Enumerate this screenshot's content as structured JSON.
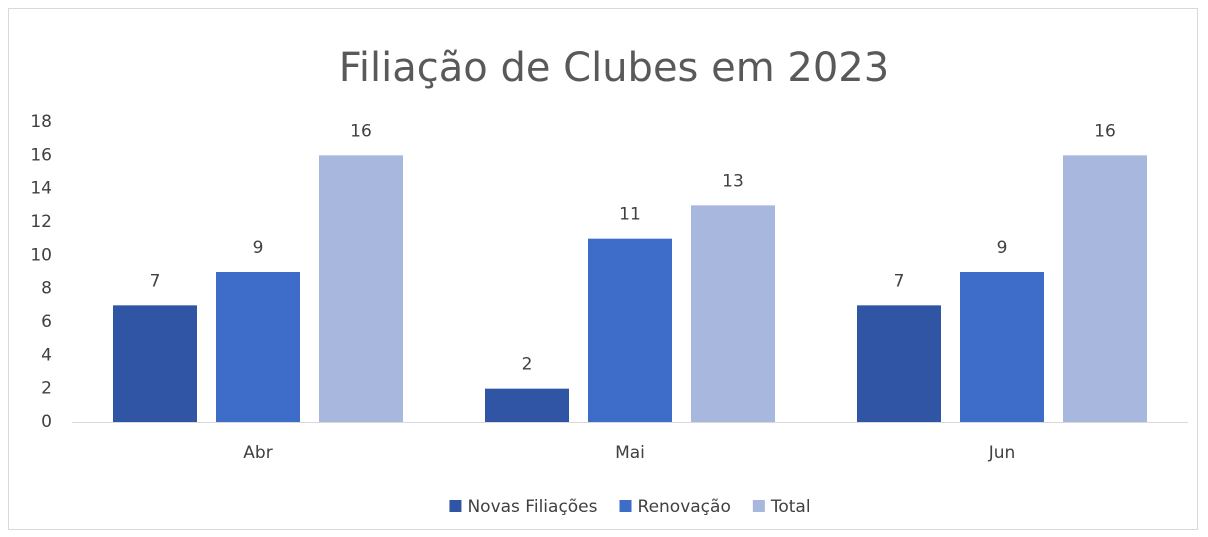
{
  "chart_data": {
    "type": "bar",
    "title": "Filiação de Clubes em 2023",
    "categories": [
      "Abr",
      "Mai",
      "Jun"
    ],
    "series": [
      {
        "name": "Novas Filiações",
        "color": "#2f55a4",
        "values": [
          7,
          2,
          7
        ]
      },
      {
        "name": "Renovação",
        "color": "#3d6cc9",
        "values": [
          9,
          11,
          9
        ]
      },
      {
        "name": "Total",
        "color": "#a8b7de",
        "values": [
          16,
          13,
          16
        ]
      }
    ],
    "ylim": [
      0,
      18
    ],
    "yticks": [
      0,
      2,
      4,
      6,
      8,
      10,
      12,
      14,
      16,
      18
    ],
    "grid": false,
    "legend": "bottom"
  }
}
